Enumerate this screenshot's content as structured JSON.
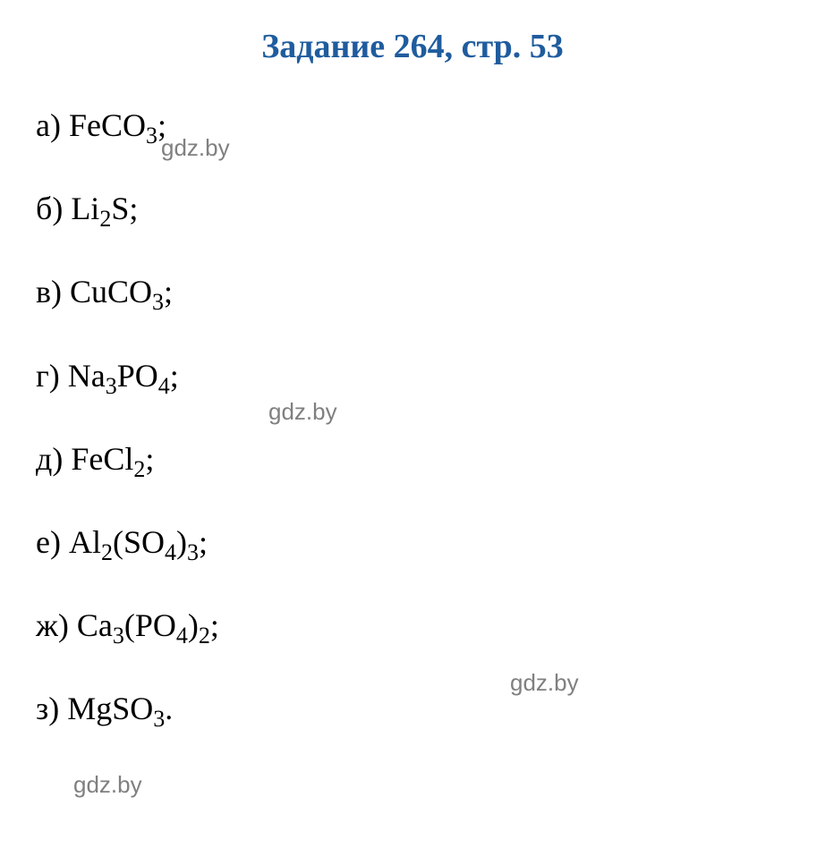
{
  "title": "Задание 264, стр. 53",
  "title_color": "#1f5c9e",
  "title_fontsize": 38,
  "body_color": "#000000",
  "body_fontsize": 36,
  "sub_fontsize": 26,
  "background_color": "#ffffff",
  "items": [
    {
      "label": "а)",
      "parts": [
        "FeCO",
        {
          "sub": "3"
        },
        ";"
      ]
    },
    {
      "label": "б)",
      "parts": [
        "Li",
        {
          "sub": "2"
        },
        "S;"
      ]
    },
    {
      "label": "в)",
      "parts": [
        "CuCO",
        {
          "sub": "3"
        },
        ";"
      ]
    },
    {
      "label": "г)",
      "parts": [
        "Na",
        {
          "sub": "3"
        },
        "PO",
        {
          "sub": "4"
        },
        ";"
      ]
    },
    {
      "label": "д)",
      "parts": [
        "FeCl",
        {
          "sub": "2"
        },
        ";"
      ]
    },
    {
      "label": "е)",
      "parts": [
        "Al",
        {
          "sub": "2"
        },
        "(SO",
        {
          "sub": "4"
        },
        ")",
        {
          "sub": "3"
        },
        ";"
      ]
    },
    {
      "label": "ж)",
      "parts": [
        "Ca",
        {
          "sub": "3"
        },
        "(PO",
        {
          "sub": "4"
        },
        ")",
        {
          "sub": "2"
        },
        ";"
      ]
    },
    {
      "label": "з)",
      "parts": [
        "MgSO",
        {
          "sub": "3"
        },
        "."
      ]
    }
  ],
  "watermarks": {
    "text": "gdz.by",
    "color": "#808080",
    "fontsize": 26,
    "positions": [
      {
        "class": "wm1"
      },
      {
        "class": "wm2"
      },
      {
        "class": "wm3"
      },
      {
        "class": "wm4"
      }
    ]
  }
}
